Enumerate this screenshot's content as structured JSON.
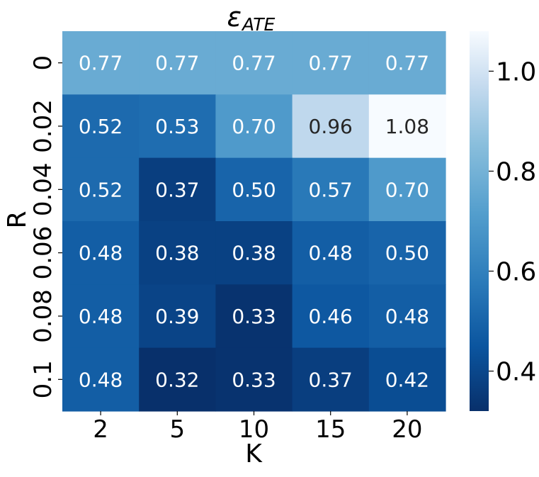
{
  "chart_data": {
    "type": "heatmap",
    "title_main": "ε",
    "title_sub": "ATE",
    "xlabel": "K",
    "ylabel": "R",
    "x_categories": [
      "2",
      "5",
      "10",
      "15",
      "20"
    ],
    "y_categories": [
      "0",
      "0.02",
      "0.04",
      "0.06",
      "0.08",
      "0.1"
    ],
    "values": [
      [
        0.77,
        0.77,
        0.77,
        0.77,
        0.77
      ],
      [
        0.52,
        0.53,
        0.7,
        0.96,
        1.08
      ],
      [
        0.52,
        0.37,
        0.5,
        0.57,
        0.7
      ],
      [
        0.48,
        0.38,
        0.38,
        0.48,
        0.5
      ],
      [
        0.48,
        0.39,
        0.33,
        0.46,
        0.48
      ],
      [
        0.48,
        0.32,
        0.33,
        0.37,
        0.42
      ]
    ],
    "colormap": "Blues_r",
    "vmin": 0.32,
    "vmax": 1.08,
    "colorbar_ticks": [
      "0.4",
      "0.6",
      "0.8",
      "1.0"
    ],
    "annotation_format": "0.00",
    "grid": false
  }
}
